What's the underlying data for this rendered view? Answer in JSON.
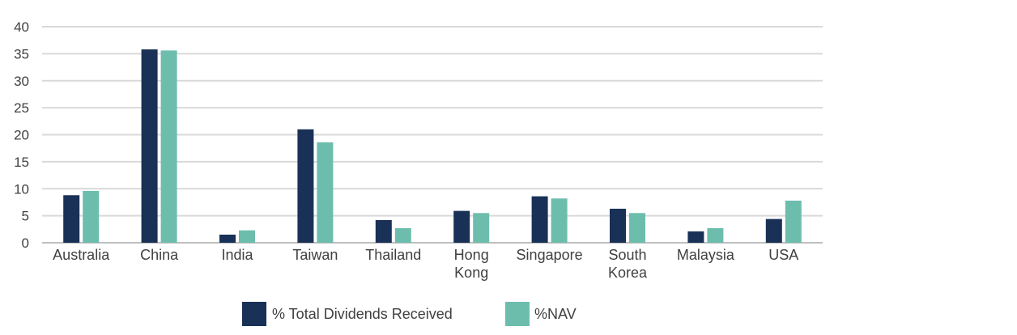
{
  "chart_data": {
    "type": "bar",
    "title": "",
    "xlabel": "",
    "ylabel": "",
    "ylim": [
      0,
      40
    ],
    "yticks": [
      0,
      5,
      10,
      15,
      20,
      25,
      30,
      35,
      40
    ],
    "grid": true,
    "legend_position": "bottom",
    "categories": [
      [
        "Australia"
      ],
      [
        "China"
      ],
      [
        "India"
      ],
      [
        "Taiwan"
      ],
      [
        "Thailand"
      ],
      [
        "Hong",
        "Kong"
      ],
      [
        "Singapore"
      ],
      [
        "South",
        "Korea"
      ],
      [
        "Malaysia"
      ],
      [
        "USA"
      ]
    ],
    "series": [
      {
        "name": "% Total Dividends Received",
        "color": "#1a3157",
        "values": [
          8.8,
          35.8,
          1.5,
          21.0,
          4.2,
          5.9,
          8.6,
          6.3,
          2.1,
          4.4
        ]
      },
      {
        "name": "%NAV",
        "color": "#6dbdad",
        "values": [
          9.6,
          35.6,
          2.3,
          18.6,
          2.7,
          5.5,
          8.2,
          5.5,
          2.7,
          7.8
        ]
      }
    ]
  }
}
